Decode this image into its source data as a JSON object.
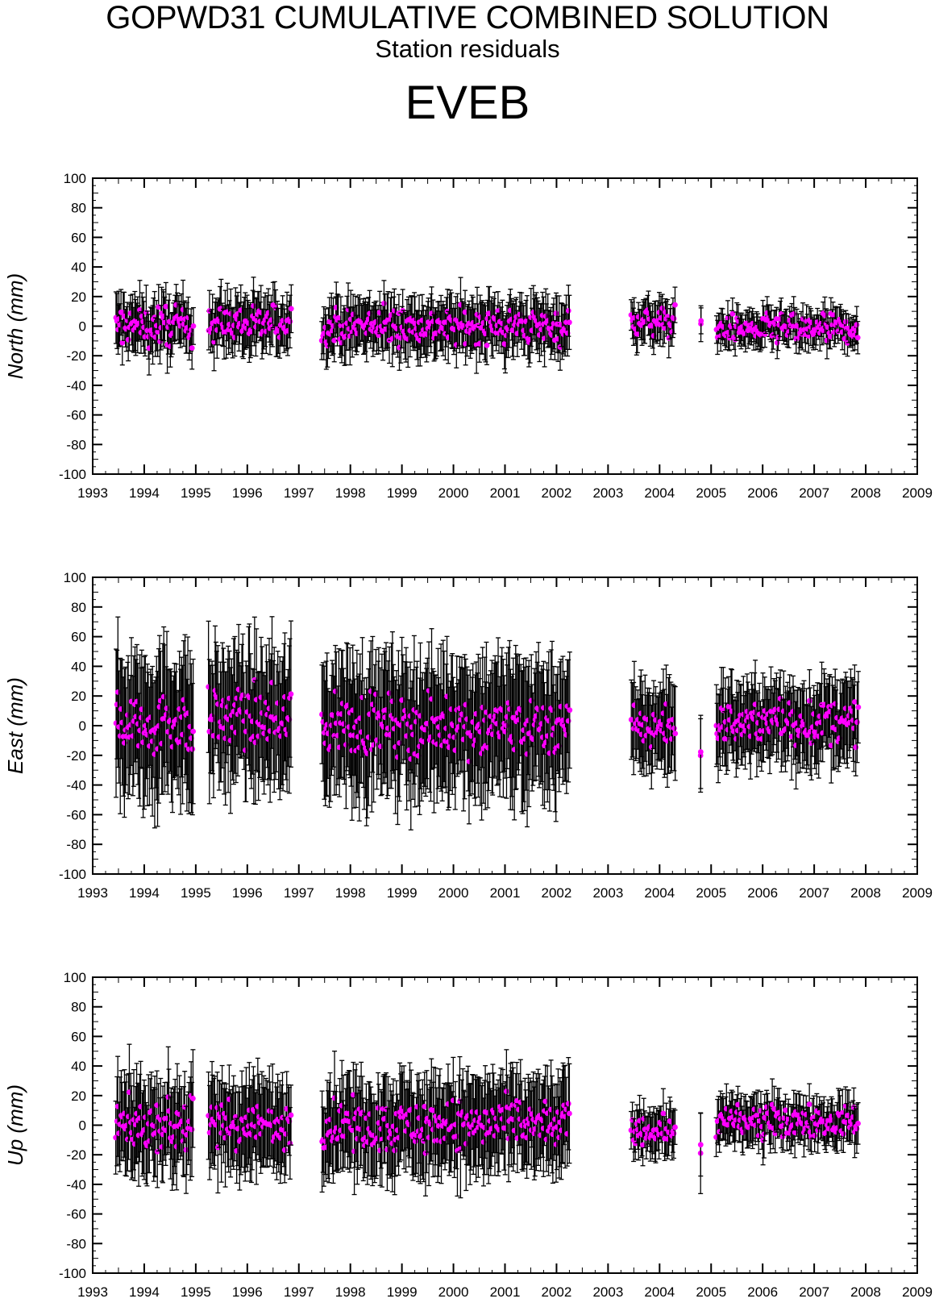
{
  "header": {
    "title": "GOPWD31 CUMULATIVE COMBINED SOLUTION",
    "subtitle": "Station residuals",
    "station": "EVEB"
  },
  "colors": {
    "marker": "#ff00ff",
    "errorbar": "#000000",
    "frame": "#000000"
  },
  "chart_data": [
    {
      "type": "scatter",
      "ylabel": "North (mm)",
      "xlim": [
        1993,
        2009
      ],
      "ylim": [
        -100,
        100
      ],
      "xticks": [
        1993,
        1994,
        1995,
        1996,
        1997,
        1998,
        1999,
        2000,
        2001,
        2002,
        2003,
        2004,
        2005,
        2006,
        2007,
        2008,
        2009
      ],
      "yticks": [
        -100,
        -80,
        -60,
        -40,
        -20,
        0,
        20,
        40,
        60,
        80,
        100
      ],
      "error_bars": true,
      "segments": [
        {
          "start": 1993.45,
          "end": 1994.95,
          "center": 0,
          "amp": 18,
          "err": 16
        },
        {
          "start": 1995.25,
          "end": 1996.85,
          "center": 2,
          "amp": 17,
          "err": 16
        },
        {
          "start": 1997.45,
          "end": 2002.25,
          "center": 0,
          "amp": 16,
          "err": 16
        },
        {
          "start": 2003.45,
          "end": 2004.3,
          "center": 3,
          "amp": 12,
          "err": 12
        },
        {
          "start": 2004.8,
          "end": 2004.8,
          "center": 3,
          "amp": 4,
          "err": 11
        },
        {
          "start": 2005.1,
          "end": 2007.85,
          "center": -2,
          "amp": 13,
          "err": 10
        }
      ],
      "n_per_year": 50
    },
    {
      "type": "scatter",
      "ylabel": "East (mm)",
      "xlim": [
        1993,
        2009
      ],
      "ylim": [
        -100,
        100
      ],
      "xticks": [
        1993,
        1994,
        1995,
        1996,
        1997,
        1998,
        1999,
        2000,
        2001,
        2002,
        2003,
        2004,
        2005,
        2006,
        2007,
        2008,
        2009
      ],
      "yticks": [
        -100,
        -80,
        -60,
        -40,
        -20,
        0,
        20,
        40,
        60,
        80,
        100
      ],
      "error_bars": true,
      "segments": [
        {
          "start": 1993.45,
          "end": 1994.95,
          "center": 2,
          "amp": 27,
          "err": 42
        },
        {
          "start": 1995.25,
          "end": 1996.85,
          "center": 5,
          "amp": 27,
          "err": 40
        },
        {
          "start": 1997.45,
          "end": 2002.25,
          "center": 0,
          "amp": 26,
          "err": 40
        },
        {
          "start": 2003.45,
          "end": 2004.3,
          "center": 0,
          "amp": 22,
          "err": 26
        },
        {
          "start": 2004.8,
          "end": 2004.8,
          "center": -20,
          "amp": 4,
          "err": 28
        },
        {
          "start": 2005.1,
          "end": 2007.85,
          "center": 2,
          "amp": 20,
          "err": 24
        }
      ],
      "n_per_year": 50
    },
    {
      "type": "scatter",
      "ylabel": "Up (mm)",
      "xlim": [
        1993,
        2009
      ],
      "ylim": [
        -100,
        100
      ],
      "xticks": [
        1993,
        1994,
        1995,
        1996,
        1997,
        1998,
        1999,
        2000,
        2001,
        2002,
        2003,
        2004,
        2005,
        2006,
        2007,
        2008,
        2009
      ],
      "yticks": [
        -100,
        -80,
        -60,
        -40,
        -20,
        0,
        20,
        40,
        60,
        80,
        100
      ],
      "error_bars": true,
      "segments": [
        {
          "start": 1993.45,
          "end": 1994.95,
          "center": 0,
          "amp": 22,
          "err": 28
        },
        {
          "start": 1995.25,
          "end": 1996.85,
          "center": 0,
          "amp": 22,
          "err": 27
        },
        {
          "start": 1997.45,
          "end": 2002.25,
          "center": 0,
          "amp": 22,
          "err": 28
        },
        {
          "start": 2003.45,
          "end": 2004.3,
          "center": -3,
          "amp": 12,
          "err": 14
        },
        {
          "start": 2004.8,
          "end": 2004.8,
          "center": -15,
          "amp": 8,
          "err": 22
        },
        {
          "start": 2005.1,
          "end": 2007.85,
          "center": 2,
          "amp": 14,
          "err": 14
        }
      ],
      "n_per_year": 50
    }
  ]
}
